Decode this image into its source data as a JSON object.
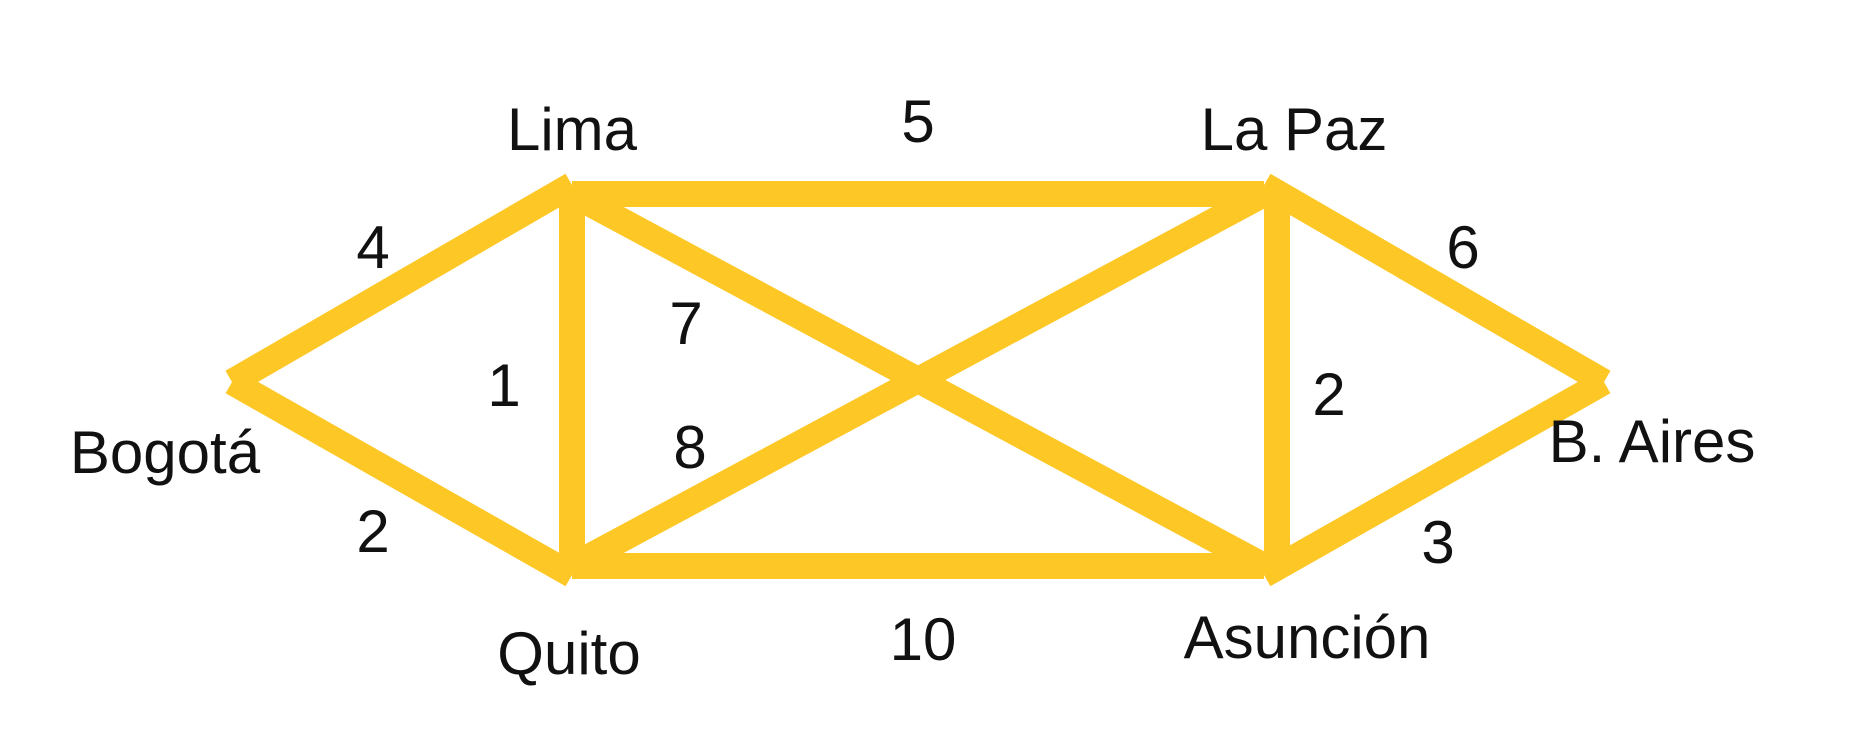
{
  "colors": {
    "edge": "#FDC826",
    "text": "#111111",
    "background": "#FFFFFF"
  },
  "nodes": {
    "bogota": "Bogotá",
    "lima": "Lima",
    "quito": "Quito",
    "la_paz": "La Paz",
    "asuncion": "Asunción",
    "b_aires": "B. Aires"
  },
  "edges": [
    {
      "from": "bogota",
      "to": "lima",
      "weight": "4"
    },
    {
      "from": "bogota",
      "to": "quito",
      "weight": "2"
    },
    {
      "from": "lima",
      "to": "quito",
      "weight": "1"
    },
    {
      "from": "lima",
      "to": "la_paz",
      "weight": "5"
    },
    {
      "from": "lima",
      "to": "asuncion",
      "weight": "7"
    },
    {
      "from": "quito",
      "to": "la_paz",
      "weight": "8"
    },
    {
      "from": "quito",
      "to": "asuncion",
      "weight": "10"
    },
    {
      "from": "la_paz",
      "to": "asuncion",
      "weight": "2"
    },
    {
      "from": "la_paz",
      "to": "b_aires",
      "weight": "6"
    },
    {
      "from": "asuncion",
      "to": "b_aires",
      "weight": "3"
    }
  ]
}
